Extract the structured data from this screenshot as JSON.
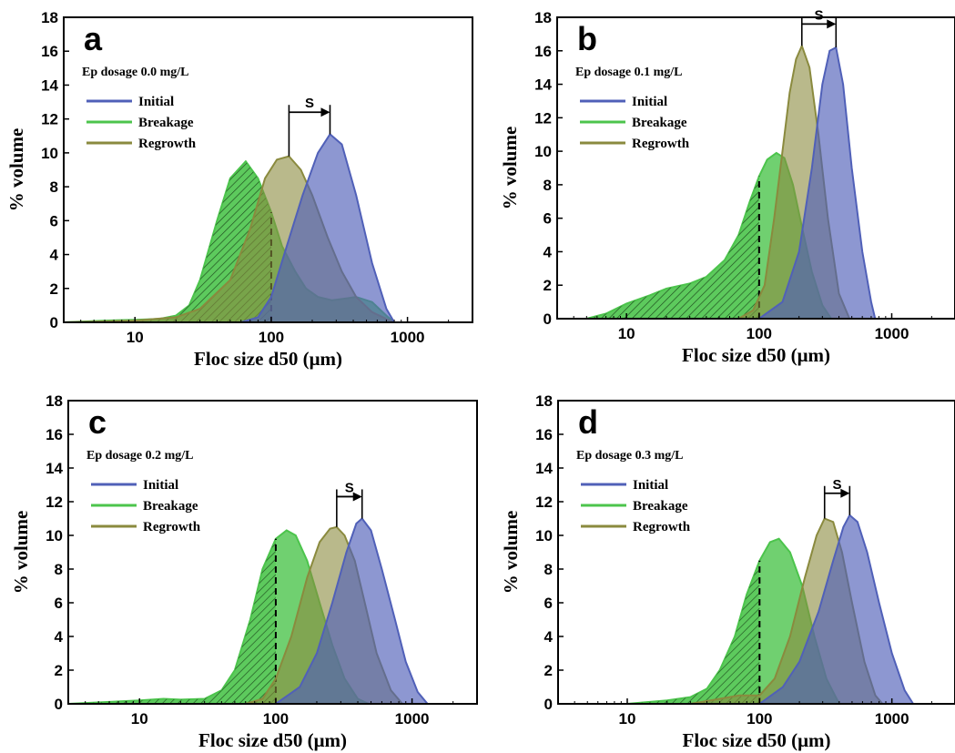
{
  "chart_data": [
    {
      "type": "area",
      "panel": "a",
      "dosage": "Ep dosage 0.0 mg/L",
      "xlabel": "Floc size d50 (μm)",
      "ylabel": "% volume",
      "x_scale": "log",
      "xlim": [
        3,
        3000
      ],
      "ylim": [
        0,
        18
      ],
      "xticks": [
        10,
        100,
        1000
      ],
      "yticks": [
        0,
        2,
        4,
        6,
        8,
        10,
        12,
        14,
        16,
        18
      ],
      "legend": [
        "Initial",
        "Breakage",
        "Regrowth"
      ],
      "shift_label": "S",
      "cutoff_x": 100,
      "series": [
        {
          "name": "Initial",
          "x": [
            60,
            80,
            100,
            130,
            170,
            220,
            270,
            330,
            420,
            550,
            700,
            800
          ],
          "values": [
            0,
            0.3,
            1.5,
            4.5,
            7.5,
            10,
            11.1,
            10.5,
            7.5,
            3.5,
            0.8,
            0
          ]
        },
        {
          "name": "Breakage",
          "x": [
            3,
            6,
            10,
            15,
            20,
            25,
            30,
            40,
            50,
            65,
            80,
            100,
            120,
            150,
            180,
            220,
            280,
            350,
            420,
            550,
            700,
            800
          ],
          "values": [
            0,
            0.1,
            0.15,
            0.2,
            0.4,
            1.0,
            2.5,
            6.0,
            8.5,
            9.5,
            8.5,
            6.5,
            4.5,
            3.0,
            2.0,
            1.5,
            1.3,
            1.4,
            1.5,
            1.2,
            0.4,
            0
          ]
        },
        {
          "name": "Regrowth",
          "x": [
            3,
            10,
            20,
            30,
            50,
            70,
            90,
            110,
            135,
            165,
            200,
            260,
            330,
            420,
            550,
            700,
            800
          ],
          "values": [
            0,
            0.1,
            0.3,
            0.8,
            2.5,
            5.5,
            8.5,
            9.6,
            9.8,
            9.0,
            7.5,
            5.0,
            3.0,
            1.5,
            0.6,
            0.2,
            0
          ]
        }
      ]
    },
    {
      "type": "area",
      "panel": "b",
      "dosage": "Ep dosage 0.1 mg/L",
      "xlabel": "Floc size d50 (μm)",
      "ylabel": "% volume",
      "x_scale": "log",
      "xlim": [
        3,
        3000
      ],
      "ylim": [
        0,
        18
      ],
      "xticks": [
        10,
        100,
        1000
      ],
      "yticks": [
        0,
        2,
        4,
        6,
        8,
        10,
        12,
        14,
        16,
        18
      ],
      "legend": [
        "Initial",
        "Breakage",
        "Regrowth"
      ],
      "shift_label": "S",
      "cutoff_x": 100,
      "series": [
        {
          "name": "Initial",
          "x": [
            100,
            150,
            200,
            250,
            300,
            340,
            380,
            430,
            500,
            600,
            700,
            750
          ],
          "values": [
            0,
            1,
            4,
            9,
            14,
            16,
            16.2,
            14,
            9,
            4,
            1,
            0
          ]
        },
        {
          "name": "Breakage",
          "x": [
            5,
            7,
            10,
            15,
            20,
            30,
            40,
            55,
            70,
            85,
            100,
            115,
            135,
            155,
            180,
            210,
            250,
            300,
            350
          ],
          "values": [
            0,
            0.3,
            0.9,
            1.4,
            1.8,
            2.1,
            2.5,
            3.5,
            5.0,
            7.0,
            8.5,
            9.5,
            9.9,
            9.6,
            8.0,
            5.5,
            2.8,
            0.8,
            0
          ]
        },
        {
          "name": "Regrowth",
          "x": [
            70,
            90,
            110,
            130,
            150,
            170,
            190,
            210,
            240,
            280,
            330,
            400,
            480
          ],
          "values": [
            0,
            0.5,
            2,
            6,
            10,
            13.5,
            15.5,
            16.3,
            15,
            11,
            6,
            1.5,
            0
          ]
        }
      ]
    },
    {
      "type": "area",
      "panel": "c",
      "dosage": "Ep dosage 0.2 mg/L",
      "xlabel": "Floc size d50 (μm)",
      "ylabel": "% volume",
      "x_scale": "log",
      "xlim": [
        3,
        3000
      ],
      "ylim": [
        0,
        18
      ],
      "xticks": [
        10,
        100,
        1000
      ],
      "yticks": [
        0,
        2,
        4,
        6,
        8,
        10,
        12,
        14,
        16,
        18
      ],
      "legend": [
        "Initial",
        "Breakage",
        "Regrowth"
      ],
      "shift_label": "S",
      "cutoff_x": 100,
      "series": [
        {
          "name": "Initial",
          "x": [
            100,
            150,
            200,
            260,
            330,
            390,
            430,
            500,
            600,
            750,
            900,
            1100,
            1300
          ],
          "values": [
            0,
            1,
            3,
            6,
            9,
            10.7,
            11,
            10.3,
            8,
            5,
            2.5,
            0.7,
            0
          ]
        },
        {
          "name": "Breakage",
          "x": [
            3,
            10,
            15,
            20,
            30,
            40,
            50,
            65,
            80,
            100,
            120,
            140,
            170,
            210,
            260,
            320,
            400,
            480
          ],
          "values": [
            0,
            0.2,
            0.3,
            0.25,
            0.3,
            0.8,
            2.0,
            5.0,
            8.0,
            9.8,
            10.3,
            10.0,
            8.5,
            6.0,
            3.5,
            1.5,
            0.3,
            0
          ]
        },
        {
          "name": "Regrowth",
          "x": [
            60,
            80,
            100,
            130,
            170,
            210,
            250,
            280,
            320,
            380,
            450,
            550,
            700,
            850
          ],
          "values": [
            0,
            0.3,
            1.5,
            4,
            7.5,
            9.6,
            10.4,
            10.5,
            10,
            8.5,
            6,
            3,
            0.8,
            0
          ]
        }
      ]
    },
    {
      "type": "area",
      "panel": "d",
      "dosage": "Ep dosage 0.3 mg/L",
      "xlabel": "Floc size d50 (μm)",
      "ylabel": "% volume",
      "x_scale": "log",
      "xlim": [
        3,
        3000
      ],
      "ylim": [
        0,
        18
      ],
      "xticks": [
        10,
        100,
        1000
      ],
      "yticks": [
        0,
        2,
        4,
        6,
        8,
        10,
        12,
        14,
        16,
        18
      ],
      "legend": [
        "Initial",
        "Breakage",
        "Regrowth"
      ],
      "shift_label": "S",
      "cutoff_x": 100,
      "series": [
        {
          "name": "Initial",
          "x": [
            100,
            150,
            200,
            280,
            360,
            430,
            480,
            550,
            650,
            800,
            1000,
            1250,
            1450
          ],
          "values": [
            0,
            1,
            2.5,
            5.5,
            8.5,
            10.5,
            11.2,
            10.8,
            9,
            6,
            3,
            0.8,
            0
          ]
        },
        {
          "name": "Breakage",
          "x": [
            10,
            20,
            30,
            40,
            50,
            65,
            80,
            100,
            120,
            140,
            170,
            210,
            260,
            320,
            400
          ],
          "values": [
            0,
            0.2,
            0.4,
            0.9,
            2.0,
            4.0,
            6.5,
            8.5,
            9.6,
            9.8,
            9.0,
            7.0,
            4.0,
            1.5,
            0
          ]
        },
        {
          "name": "Regrowth",
          "x": [
            30,
            50,
            70,
            100,
            130,
            170,
            220,
            270,
            310,
            360,
            420,
            500,
            620,
            750,
            850
          ],
          "values": [
            0,
            0.3,
            0.5,
            0.5,
            1.5,
            4,
            7.5,
            10,
            11,
            10.8,
            9,
            6,
            2.5,
            0.5,
            0
          ]
        }
      ]
    }
  ],
  "colors": {
    "initial": "#5060b8",
    "breakage": "#4cc44c",
    "regrowth": "#8a8a3e"
  }
}
